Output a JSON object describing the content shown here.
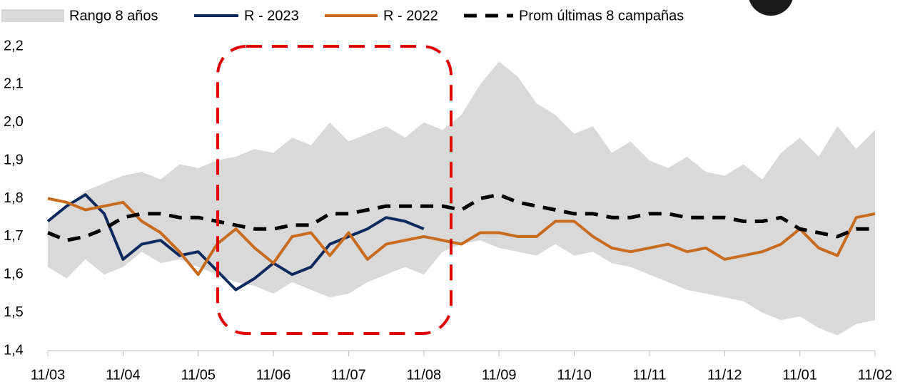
{
  "chart_data": {
    "type": "line",
    "categories": [
      "11/03",
      null,
      null,
      null,
      "11/04",
      null,
      null,
      null,
      "11/05",
      null,
      null,
      null,
      "11/06",
      null,
      null,
      null,
      "11/07",
      null,
      null,
      null,
      "11/08",
      null,
      null,
      null,
      "11/09",
      null,
      null,
      null,
      "11/10",
      null,
      null,
      null,
      "11/11",
      null,
      null,
      null,
      "11/12",
      null,
      null,
      null,
      "11/01",
      null,
      null,
      null,
      "11/02"
    ],
    "ylim": [
      1.4,
      2.2
    ],
    "yticks": [
      {
        "value": 1.4,
        "label": "1,4"
      },
      {
        "value": 1.5,
        "label": "1,5"
      },
      {
        "value": 1.6,
        "label": "1,6"
      },
      {
        "value": 1.7,
        "label": "1,7"
      },
      {
        "value": 1.8,
        "label": "1,8"
      },
      {
        "value": 1.9,
        "label": "1,9"
      },
      {
        "value": 2.0,
        "label": "2,0"
      },
      {
        "value": 2.1,
        "label": "2,1"
      },
      {
        "value": 2.2,
        "label": "2,2"
      }
    ],
    "series": [
      {
        "name": "Rango 8 años",
        "kind": "range",
        "color": "#d9d9d9",
        "low": [
          1.62,
          1.59,
          1.64,
          1.6,
          1.62,
          1.66,
          1.63,
          1.64,
          1.62,
          1.6,
          1.58,
          1.57,
          1.55,
          1.58,
          1.56,
          1.54,
          1.55,
          1.58,
          1.6,
          1.62,
          1.6,
          1.66,
          1.68,
          1.69,
          1.67,
          1.66,
          1.65,
          1.68,
          1.65,
          1.66,
          1.63,
          1.62,
          1.6,
          1.58,
          1.56,
          1.55,
          1.54,
          1.53,
          1.5,
          1.48,
          1.49,
          1.46,
          1.44,
          1.47,
          1.48
        ],
        "high": [
          1.74,
          1.78,
          1.82,
          1.84,
          1.86,
          1.87,
          1.85,
          1.89,
          1.88,
          1.9,
          1.91,
          1.93,
          1.92,
          1.96,
          1.94,
          2.0,
          1.95,
          1.97,
          1.99,
          1.96,
          2.0,
          1.98,
          2.02,
          2.1,
          2.16,
          2.12,
          2.05,
          2.02,
          1.97,
          1.99,
          1.92,
          1.95,
          1.9,
          1.88,
          1.91,
          1.87,
          1.86,
          1.89,
          1.85,
          1.92,
          1.96,
          1.91,
          1.99,
          1.93,
          1.98
        ]
      },
      {
        "name": "R - 2023",
        "color": "#0d2a5e",
        "values": [
          1.74,
          1.78,
          1.81,
          1.76,
          1.64,
          1.68,
          1.69,
          1.65,
          1.66,
          1.61,
          1.56,
          1.59,
          1.63,
          1.6,
          1.62,
          1.68,
          1.7,
          1.72,
          1.75,
          1.74,
          1.72,
          null,
          null,
          null,
          null,
          null,
          null,
          null,
          null,
          null,
          null,
          null,
          null,
          null,
          null,
          null,
          null,
          null,
          null,
          null,
          null,
          null,
          null,
          null,
          null
        ]
      },
      {
        "name": "R - 2022",
        "color": "#c96b1e",
        "values": [
          1.8,
          1.79,
          1.77,
          1.78,
          1.79,
          1.74,
          1.71,
          1.66,
          1.6,
          1.68,
          1.72,
          1.67,
          1.63,
          1.7,
          1.71,
          1.65,
          1.71,
          1.64,
          1.68,
          1.69,
          1.7,
          1.69,
          1.68,
          1.71,
          1.71,
          1.7,
          1.7,
          1.74,
          1.74,
          1.7,
          1.67,
          1.66,
          1.67,
          1.68,
          1.66,
          1.67,
          1.64,
          1.65,
          1.66,
          1.68,
          1.72,
          1.67,
          1.65,
          1.75,
          1.76
        ]
      },
      {
        "name": "Prom últimas 8 campañas",
        "color": "#000000",
        "dashed": true,
        "values": [
          1.71,
          1.69,
          1.7,
          1.72,
          1.75,
          1.76,
          1.76,
          1.75,
          1.75,
          1.74,
          1.73,
          1.72,
          1.72,
          1.73,
          1.73,
          1.76,
          1.76,
          1.77,
          1.78,
          1.78,
          1.78,
          1.78,
          1.77,
          1.8,
          1.81,
          1.79,
          1.78,
          1.77,
          1.76,
          1.76,
          1.75,
          1.75,
          1.76,
          1.76,
          1.75,
          1.75,
          1.75,
          1.74,
          1.74,
          1.75,
          1.72,
          1.71,
          1.7,
          1.72,
          1.72
        ]
      }
    ]
  }
}
